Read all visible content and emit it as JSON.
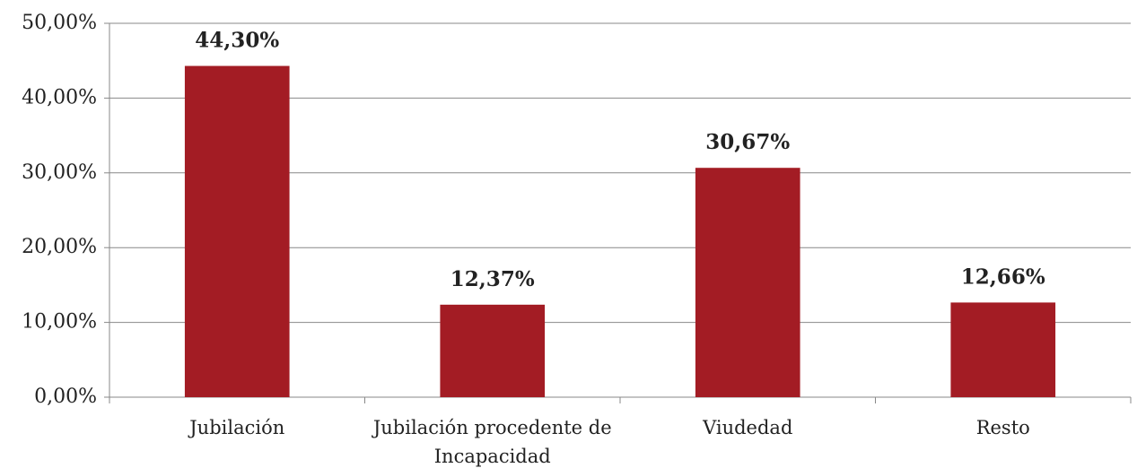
{
  "chart_data": {
    "type": "bar",
    "categories": [
      "Jubilación",
      "Jubilación procedente de Incapacidad",
      "Viudedad",
      "Resto"
    ],
    "values": [
      44.3,
      12.37,
      30.67,
      12.66
    ],
    "value_labels": [
      "44,30%",
      "12,37%",
      "30,67%",
      "12,66%"
    ],
    "color": "#a31c24",
    "ylim": [
      0,
      50
    ],
    "yticks": [
      {
        "value": 0,
        "label": "0,00%"
      },
      {
        "value": 10,
        "label": "10,00%"
      },
      {
        "value": 20,
        "label": "20,00%"
      },
      {
        "value": 30,
        "label": "30,00%"
      },
      {
        "value": 40,
        "label": "40,00%"
      },
      {
        "value": 50,
        "label": "50,00%"
      }
    ],
    "grid": true
  }
}
